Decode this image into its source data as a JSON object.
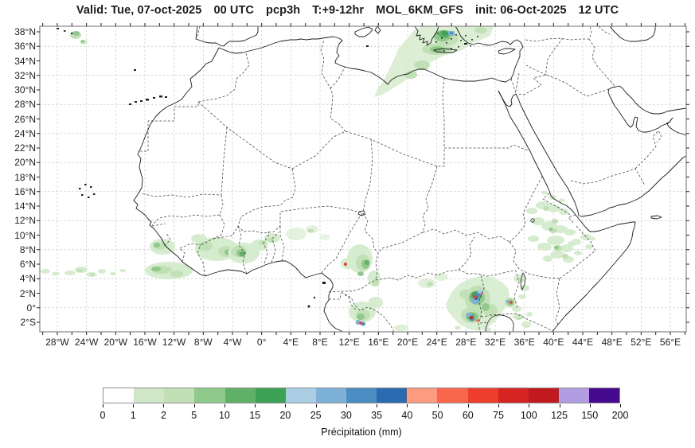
{
  "title": {
    "parts": [
      "Valid: Tue, 07-oct-2025",
      "00 UTC",
      "pcp3h",
      "T:+9-12hr",
      "MOL_6KM_GFS",
      "init: 06-Oct-2025",
      "12 UTC"
    ]
  },
  "map": {
    "lat_labels": [
      "38°N",
      "36°N",
      "34°N",
      "32°N",
      "30°N",
      "28°N",
      "26°N",
      "24°N",
      "22°N",
      "20°N",
      "18°N",
      "16°N",
      "14°N",
      "12°N",
      "10°N",
      "8°N",
      "6°N",
      "4°N",
      "2°N",
      "0°",
      "2°S"
    ],
    "lon_labels": [
      "28°W",
      "24°W",
      "20°W",
      "16°W",
      "12°W",
      "8°W",
      "4°W",
      "0°",
      "4°E",
      "8°E",
      "12°E",
      "16°E",
      "20°E",
      "24°E",
      "28°E",
      "32°E",
      "36°E",
      "40°E",
      "44°E",
      "48°E",
      "52°E",
      "56°E"
    ]
  },
  "colorbar": {
    "tick_labels": [
      "0",
      "1",
      "2",
      "5",
      "10",
      "15",
      "20",
      "25",
      "30",
      "35",
      "40",
      "50",
      "60",
      "75",
      "100",
      "125",
      "150",
      "200"
    ],
    "segment_colors": [
      "#ffffff",
      "#cfe7c6",
      "#c1e0b6",
      "#8fc98b",
      "#60b167",
      "#3da155",
      "#abcee5",
      "#7db1d7",
      "#4c8dc3",
      "#2a6aae",
      "#fb9c80",
      "#f8674b",
      "#ec3e2b",
      "#d62422",
      "#c01a1e",
      "#b29ce2",
      "#45098d"
    ],
    "axis_label": "Précipitation (mm)"
  },
  "colors": {
    "coastline": "#1c1c1c",
    "border": "#2e2e2e",
    "grid": "#c7c7c7",
    "frame": "#8e8e8e",
    "title_text": "#1b1b1b"
  }
}
